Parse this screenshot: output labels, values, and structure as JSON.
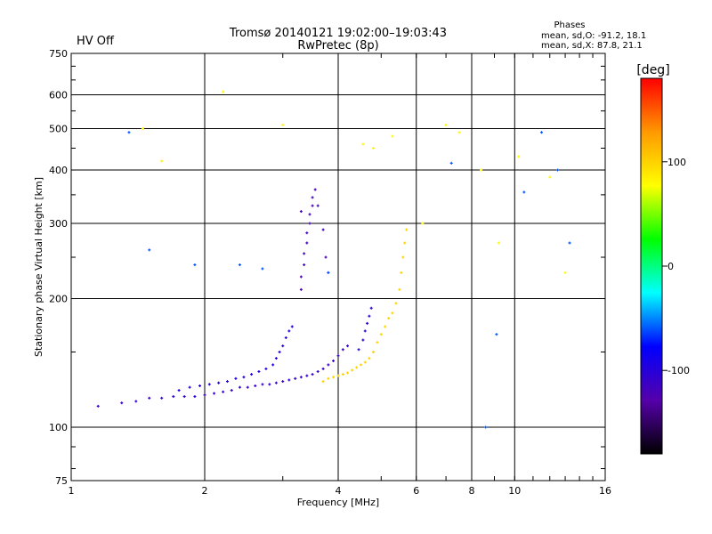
{
  "status": {
    "hv_label": "HV Off",
    "hv_color": "#cc0000"
  },
  "chart_data": {
    "type": "scatter",
    "title": "Tromsø 20140121 19:02:00–19:03:43",
    "subtitle": "RwPretec (8p)",
    "xlabel": "Frequency [MHz]",
    "ylabel": "Stationary phase Virtual Height [km]",
    "xscale": "log",
    "yscale": "log",
    "xlim": [
      1,
      16
    ],
    "ylim": [
      75,
      750
    ],
    "xticks": [
      1,
      2,
      4,
      6,
      8,
      10,
      16
    ],
    "xtick_labels": [
      "1",
      "2",
      "4",
      "6",
      "8",
      "10",
      "16"
    ],
    "x_gridlines": [
      2,
      4,
      6,
      8,
      10
    ],
    "yticks": [
      75,
      100,
      200,
      300,
      400,
      500,
      600,
      750
    ],
    "ytick_labels": [
      "75",
      "100",
      "200",
      "300",
      "400",
      "500",
      "600",
      "750"
    ],
    "y_gridlines": [
      100,
      200,
      300,
      400,
      500,
      600
    ],
    "grid": true,
    "phase_stats": {
      "title": "Phases",
      "line_o": "mean, sd,O: -91.2, 18.1",
      "line_x": "mean, sd,X:  87.8, 21.1"
    },
    "colorbar": {
      "label": "[deg]",
      "range": [
        -180,
        180
      ],
      "ticks": [
        100,
        0,
        -100
      ],
      "tick_labels": [
        "100",
        "0",
        "-100"
      ],
      "colormap": [
        "#000000",
        "#5500aa",
        "#0000ff",
        "#00ffff",
        "#00ff00",
        "#ffff00",
        "#ff9900",
        "#ff0000"
      ]
    },
    "traces": [
      {
        "name": "",
        "phase": -110,
        "points": [
          [
            1.15,
            112
          ],
          [
            1.3,
            114
          ],
          [
            1.4,
            115
          ],
          [
            1.5,
            117
          ],
          [
            1.6,
            117
          ],
          [
            1.7,
            118
          ],
          [
            1.8,
            118
          ],
          [
            1.9,
            118
          ],
          [
            2.0,
            119
          ],
          [
            2.1,
            120
          ],
          [
            2.2,
            121
          ],
          [
            2.3,
            122
          ],
          [
            2.4,
            124
          ],
          [
            2.5,
            124
          ],
          [
            2.6,
            125
          ],
          [
            2.7,
            126
          ],
          [
            2.8,
            126
          ],
          [
            2.9,
            127
          ],
          [
            3.0,
            128
          ],
          [
            3.1,
            129
          ],
          [
            3.2,
            130
          ],
          [
            3.3,
            131
          ],
          [
            3.4,
            132
          ],
          [
            3.5,
            133
          ],
          [
            3.6,
            135
          ],
          [
            3.7,
            137
          ],
          [
            3.8,
            140
          ],
          [
            3.9,
            143
          ],
          [
            4.0,
            147
          ],
          [
            4.1,
            152
          ],
          [
            4.2,
            155
          ]
        ]
      },
      {
        "name": "",
        "phase": -95,
        "points": [
          [
            1.75,
            122
          ],
          [
            1.85,
            124
          ],
          [
            1.95,
            125
          ],
          [
            2.05,
            126
          ],
          [
            2.15,
            127
          ],
          [
            2.25,
            128
          ],
          [
            2.35,
            130
          ],
          [
            2.45,
            131
          ],
          [
            2.55,
            133
          ],
          [
            2.65,
            135
          ],
          [
            2.75,
            137
          ],
          [
            2.85,
            140
          ],
          [
            2.9,
            145
          ],
          [
            2.95,
            150
          ],
          [
            3.0,
            155
          ],
          [
            3.05,
            162
          ],
          [
            3.1,
            168
          ],
          [
            3.15,
            172
          ]
        ]
      },
      {
        "name": "",
        "phase": -120,
        "points": [
          [
            3.3,
            210
          ],
          [
            3.3,
            225
          ],
          [
            3.35,
            240
          ],
          [
            3.35,
            255
          ],
          [
            3.4,
            270
          ],
          [
            3.4,
            285
          ],
          [
            3.45,
            300
          ],
          [
            3.45,
            315
          ],
          [
            3.5,
            330
          ],
          [
            3.5,
            345
          ],
          [
            3.55,
            360
          ],
          [
            3.3,
            320
          ],
          [
            3.6,
            330
          ],
          [
            3.7,
            290
          ],
          [
            3.75,
            250
          ],
          [
            3.8,
            230
          ]
        ]
      },
      {
        "name": "",
        "phase": 100,
        "points": [
          [
            3.7,
            128
          ],
          [
            3.8,
            130
          ],
          [
            3.9,
            131
          ],
          [
            4.0,
            132
          ],
          [
            4.1,
            133
          ],
          [
            4.2,
            134
          ],
          [
            4.3,
            136
          ],
          [
            4.4,
            138
          ],
          [
            4.5,
            140
          ],
          [
            4.6,
            142
          ],
          [
            4.7,
            145
          ],
          [
            4.8,
            150
          ],
          [
            4.9,
            158
          ],
          [
            5.0,
            165
          ],
          [
            5.1,
            172
          ],
          [
            5.2,
            180
          ],
          [
            5.3,
            185
          ],
          [
            5.4,
            195
          ],
          [
            5.5,
            210
          ],
          [
            5.55,
            230
          ],
          [
            5.6,
            250
          ],
          [
            5.65,
            270
          ],
          [
            5.7,
            290
          ]
        ]
      },
      {
        "name": "",
        "phase": -105,
        "points": [
          [
            4.45,
            152
          ],
          [
            4.55,
            160
          ],
          [
            4.6,
            168
          ],
          [
            4.65,
            175
          ],
          [
            4.7,
            182
          ],
          [
            4.75,
            190
          ]
        ]
      },
      {
        "name": "",
        "phase": -60,
        "points": [
          [
            1.35,
            490
          ],
          [
            1.5,
            260
          ],
          [
            1.9,
            240
          ],
          [
            2.4,
            240
          ],
          [
            2.7,
            235
          ],
          [
            3.8,
            230
          ],
          [
            7.2,
            415
          ],
          [
            8.6,
            100
          ],
          [
            9.1,
            165
          ],
          [
            10.5,
            355
          ],
          [
            11.5,
            490
          ],
          [
            12.5,
            400
          ],
          [
            13.3,
            270
          ]
        ]
      },
      {
        "name": "",
        "phase": 80,
        "points": [
          [
            1.45,
            500
          ],
          [
            1.6,
            420
          ],
          [
            2.2,
            610
          ],
          [
            3.0,
            510
          ],
          [
            4.55,
            460
          ],
          [
            4.8,
            450
          ],
          [
            5.3,
            480
          ],
          [
            6.2,
            300
          ],
          [
            7.0,
            510
          ],
          [
            7.5,
            490
          ],
          [
            8.4,
            400
          ],
          [
            9.2,
            270
          ],
          [
            10.2,
            430
          ],
          [
            12.0,
            385
          ],
          [
            13.0,
            230
          ]
        ]
      }
    ]
  }
}
